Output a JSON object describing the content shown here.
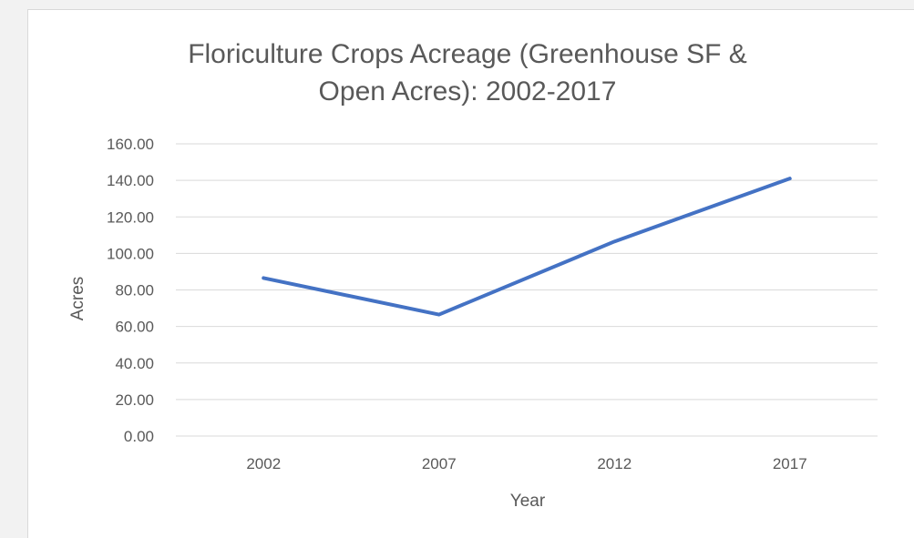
{
  "chart_data": {
    "type": "line",
    "title": "Floriculture Crops Acreage (Greenhouse SF & Open Acres): 2002-2017",
    "title_lines": [
      "Floriculture Crops Acreage (Greenhouse SF &",
      "Open Acres): 2002-2017"
    ],
    "xlabel": "Year",
    "ylabel": "Acres",
    "categories": [
      "2002",
      "2007",
      "2012",
      "2017"
    ],
    "series": [
      {
        "values": [
          86.5,
          66.5,
          106.5,
          141.0
        ]
      }
    ],
    "ylim": [
      0,
      160
    ],
    "yticks": [
      "0.00",
      "20.00",
      "40.00",
      "60.00",
      "80.00",
      "100.00",
      "120.00",
      "140.00",
      "160.00"
    ],
    "grid": true,
    "legend": "none",
    "colors": {
      "line": "#4472c4",
      "gridline": "#d9d9d9",
      "text": "#595959",
      "background": "#ffffff"
    }
  }
}
